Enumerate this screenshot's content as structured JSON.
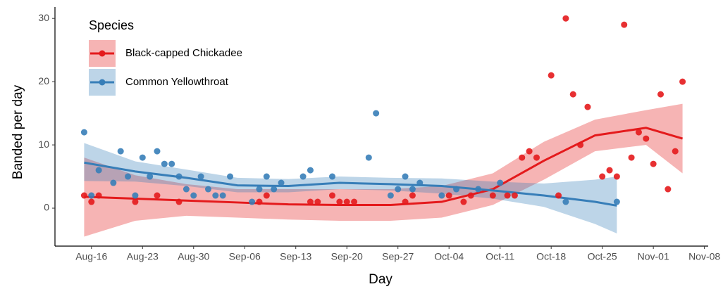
{
  "chart_data": {
    "type": "scatter-smooth",
    "x_label": "Day",
    "y_label": "Banded per day",
    "legend_title": "Species",
    "xlim": [
      "Aug-11",
      "Nov-09"
    ],
    "ylim": [
      -6,
      31.8
    ],
    "xticks": [
      "Aug-16",
      "Aug-23",
      "Aug-30",
      "Sep-06",
      "Sep-13",
      "Sep-20",
      "Sep-27",
      "Oct-04",
      "Oct-11",
      "Oct-18",
      "Oct-25",
      "Nov-01",
      "Nov-08"
    ],
    "yticks": [
      0,
      10,
      20,
      30
    ],
    "series": [
      {
        "name": "Black-capped Chickadee",
        "color": "#e41a1c",
        "x": [
          "Aug-15",
          "Aug-16",
          "Aug-17",
          "Aug-22",
          "Aug-25",
          "Aug-28",
          "Sep-08",
          "Sep-09",
          "Sep-15",
          "Sep-16",
          "Sep-18",
          "Sep-19",
          "Sep-20",
          "Sep-21",
          "Sep-28",
          "Sep-29",
          "Oct-04",
          "Oct-06",
          "Oct-07",
          "Oct-10",
          "Oct-12",
          "Oct-13",
          "Oct-14",
          "Oct-15",
          "Oct-16",
          "Oct-18",
          "Oct-19",
          "Oct-20",
          "Oct-21",
          "Oct-22",
          "Oct-23",
          "Oct-25",
          "Oct-26",
          "Oct-27",
          "Oct-28",
          "Oct-29",
          "Oct-30",
          "Oct-31",
          "Nov-01",
          "Nov-02",
          "Nov-03",
          "Nov-04",
          "Nov-05"
        ],
        "values": [
          2,
          1,
          2,
          1,
          2,
          1,
          1,
          2,
          1,
          1,
          2,
          1,
          1,
          1,
          1,
          2,
          2,
          1,
          2,
          2,
          2,
          2,
          8,
          9,
          8,
          21,
          2,
          30,
          18,
          10,
          16,
          5,
          6,
          5,
          29,
          8,
          12,
          11,
          7,
          18,
          3,
          9,
          20
        ],
        "smooth": {
          "x": [
            "Aug-15",
            "Aug-22",
            "Aug-29",
            "Sep-05",
            "Sep-12",
            "Sep-19",
            "Sep-26",
            "Oct-03",
            "Oct-10",
            "Oct-17",
            "Oct-24",
            "Oct-31",
            "Nov-05"
          ],
          "values": [
            1.8,
            1.5,
            1.2,
            0.9,
            0.6,
            0.5,
            0.5,
            1,
            3,
            7.5,
            11.5,
            12.7,
            11
          ],
          "lower": [
            -4.5,
            -2,
            -1.2,
            -1.5,
            -1.8,
            -2,
            -2,
            -1.5,
            0.5,
            4.5,
            9,
            10,
            5.5
          ],
          "upper": [
            8,
            5.2,
            3.8,
            3,
            3,
            3,
            3,
            3.5,
            5.5,
            10.5,
            14,
            15.5,
            16.5
          ]
        }
      },
      {
        "name": "Common Yellowthroat",
        "color": "#377eb8",
        "x": [
          "Aug-15",
          "Aug-16",
          "Aug-17",
          "Aug-19",
          "Aug-20",
          "Aug-21",
          "Aug-22",
          "Aug-23",
          "Aug-24",
          "Aug-25",
          "Aug-26",
          "Aug-27",
          "Aug-28",
          "Aug-29",
          "Aug-30",
          "Aug-31",
          "Sep-01",
          "Sep-02",
          "Sep-03",
          "Sep-04",
          "Sep-07",
          "Sep-08",
          "Sep-09",
          "Sep-10",
          "Sep-11",
          "Sep-14",
          "Sep-15",
          "Sep-18",
          "Sep-23",
          "Sep-24",
          "Sep-26",
          "Sep-27",
          "Sep-28",
          "Sep-29",
          "Sep-30",
          "Oct-03",
          "Oct-05",
          "Oct-08",
          "Oct-11",
          "Oct-20",
          "Oct-27"
        ],
        "values": [
          12,
          2,
          6,
          4,
          9,
          5,
          2,
          8,
          5,
          9,
          7,
          7,
          5,
          3,
          2,
          5,
          3,
          2,
          2,
          5,
          1,
          3,
          5,
          3,
          4,
          5,
          6,
          5,
          8,
          15,
          2,
          3,
          5,
          3,
          4,
          2,
          3,
          3,
          4,
          1,
          1
        ],
        "smooth": {
          "x": [
            "Aug-15",
            "Aug-22",
            "Aug-29",
            "Sep-05",
            "Sep-12",
            "Sep-19",
            "Sep-26",
            "Oct-03",
            "Oct-10",
            "Oct-17",
            "Oct-24",
            "Oct-27"
          ],
          "values": [
            7.2,
            5.8,
            4.8,
            3.6,
            3.5,
            4,
            3.8,
            3.5,
            2.8,
            2,
            1,
            0.4
          ],
          "lower": [
            4.3,
            4.2,
            3.5,
            2.5,
            2.5,
            3,
            2.8,
            2.3,
            1.5,
            0.2,
            -2.5,
            -4
          ],
          "upper": [
            10.3,
            7.4,
            6.1,
            4.8,
            4.6,
            5,
            4.8,
            4.7,
            4.2,
            3.9,
            4.5,
            5
          ]
        }
      }
    ]
  }
}
